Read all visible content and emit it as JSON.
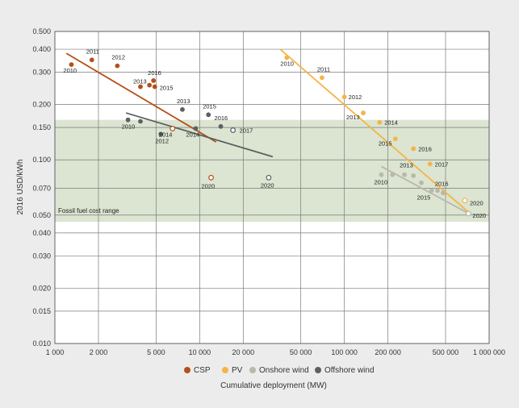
{
  "chart_data": {
    "type": "scatter",
    "title": "",
    "xlabel": "Cumulative deployment (MW)",
    "ylabel": "2016 USD/kWh",
    "x_scale": "log",
    "y_scale": "log",
    "xlim": [
      1000,
      1000000
    ],
    "ylim": [
      0.01,
      0.5
    ],
    "x_ticks": [
      1000,
      2000,
      5000,
      10000,
      20000,
      50000,
      100000,
      200000,
      500000,
      1000000
    ],
    "x_tick_labels": [
      "1 000",
      "2 000",
      "5 000",
      "10 000",
      "20 000",
      "50 000",
      "100 000",
      "200 000",
      "500 000",
      "1 000 000"
    ],
    "y_ticks": [
      0.5,
      0.4,
      0.3,
      0.2,
      0.15,
      0.1,
      0.07,
      0.05,
      0.04,
      0.03,
      0.02,
      0.015,
      0.01
    ],
    "y_tick_labels": [
      "0.500",
      "0.400",
      "0.300",
      "0.200",
      "0.150",
      "0.100",
      "0.070",
      "0.050",
      "0.040",
      "0.030",
      "0.020",
      "0.015",
      "0.010"
    ],
    "band": {
      "label": "Fossil fuel cost range",
      "y_range": [
        0.046,
        0.165
      ],
      "color": "#d5e0c9"
    },
    "legend": {
      "position": "bottom-center",
      "entries": [
        {
          "name": "CSP",
          "color": "#b5501a"
        },
        {
          "name": "PV",
          "color": "#f5b446"
        },
        {
          "name": "Onshore wind",
          "color": "#b9b8ab"
        },
        {
          "name": "Offshore wind",
          "color": "#5d6063"
        }
      ]
    },
    "series": [
      {
        "name": "CSP",
        "color": "#b5501a",
        "points": [
          {
            "x": 1300,
            "y": 0.33,
            "label": "2010"
          },
          {
            "x": 1800,
            "y": 0.35,
            "label": "2011"
          },
          {
            "x": 2700,
            "y": 0.325,
            "label": "2012"
          },
          {
            "x": 3900,
            "y": 0.25,
            "label": "2013"
          },
          {
            "x": 4800,
            "y": 0.27,
            "label": "2016"
          },
          {
            "x": 4500,
            "y": 0.255,
            "label": ""
          },
          {
            "x": 4900,
            "y": 0.25,
            "label": "2015"
          },
          {
            "x": 6500,
            "y": 0.148,
            "label": "2014",
            "hollow": true
          },
          {
            "x": 12000,
            "y": 0.08,
            "label": "2020",
            "hollow": true
          }
        ],
        "trend": [
          [
            1200,
            0.38
          ],
          [
            13000,
            0.125
          ]
        ]
      },
      {
        "name": "PV",
        "color": "#f5b446",
        "points": [
          {
            "x": 40000,
            "y": 0.36,
            "label": "2010"
          },
          {
            "x": 70000,
            "y": 0.28,
            "label": "2011"
          },
          {
            "x": 100000,
            "y": 0.22,
            "label": "2012"
          },
          {
            "x": 135000,
            "y": 0.18,
            "label": "2013"
          },
          {
            "x": 175000,
            "y": 0.16,
            "label": "2014"
          },
          {
            "x": 225000,
            "y": 0.13,
            "label": "2015"
          },
          {
            "x": 300000,
            "y": 0.115,
            "label": "2016"
          },
          {
            "x": 390000,
            "y": 0.095,
            "label": "2017"
          },
          {
            "x": 680000,
            "y": 0.06,
            "label": "2020",
            "hollow": true
          }
        ],
        "trend": [
          [
            36000,
            0.4
          ],
          [
            760000,
            0.05
          ]
        ]
      },
      {
        "name": "Onshore wind",
        "color": "#b9b8ab",
        "points": [
          {
            "x": 180000,
            "y": 0.083,
            "label": "2010"
          },
          {
            "x": 215000,
            "y": 0.083,
            "label": ""
          },
          {
            "x": 260000,
            "y": 0.083,
            "label": "2013"
          },
          {
            "x": 300000,
            "y": 0.082,
            "label": ""
          },
          {
            "x": 340000,
            "y": 0.075,
            "label": ""
          },
          {
            "x": 400000,
            "y": 0.068,
            "label": "2015"
          },
          {
            "x": 440000,
            "y": 0.068,
            "label": ""
          },
          {
            "x": 480000,
            "y": 0.066,
            "label": "2016"
          },
          {
            "x": 720000,
            "y": 0.051,
            "label": "2020",
            "hollow": true
          }
        ],
        "trend": [
          [
            180000,
            0.092
          ],
          [
            760000,
            0.05
          ]
        ]
      },
      {
        "name": "Offshore wind",
        "color": "#5d6063",
        "points": [
          {
            "x": 3200,
            "y": 0.165,
            "label": "2010"
          },
          {
            "x": 3900,
            "y": 0.162,
            "label": ""
          },
          {
            "x": 5400,
            "y": 0.138,
            "label": "2012"
          },
          {
            "x": 7600,
            "y": 0.188,
            "label": "2013"
          },
          {
            "x": 9400,
            "y": 0.148,
            "label": "2014"
          },
          {
            "x": 11500,
            "y": 0.176,
            "label": "2015"
          },
          {
            "x": 14000,
            "y": 0.152,
            "label": "2016"
          },
          {
            "x": 17000,
            "y": 0.145,
            "label": "2017",
            "hollow": true
          },
          {
            "x": 30000,
            "y": 0.08,
            "label": "2020",
            "hollow": true
          }
        ],
        "trend": [
          [
            3100,
            0.18
          ],
          [
            32000,
            0.104
          ]
        ]
      }
    ]
  }
}
